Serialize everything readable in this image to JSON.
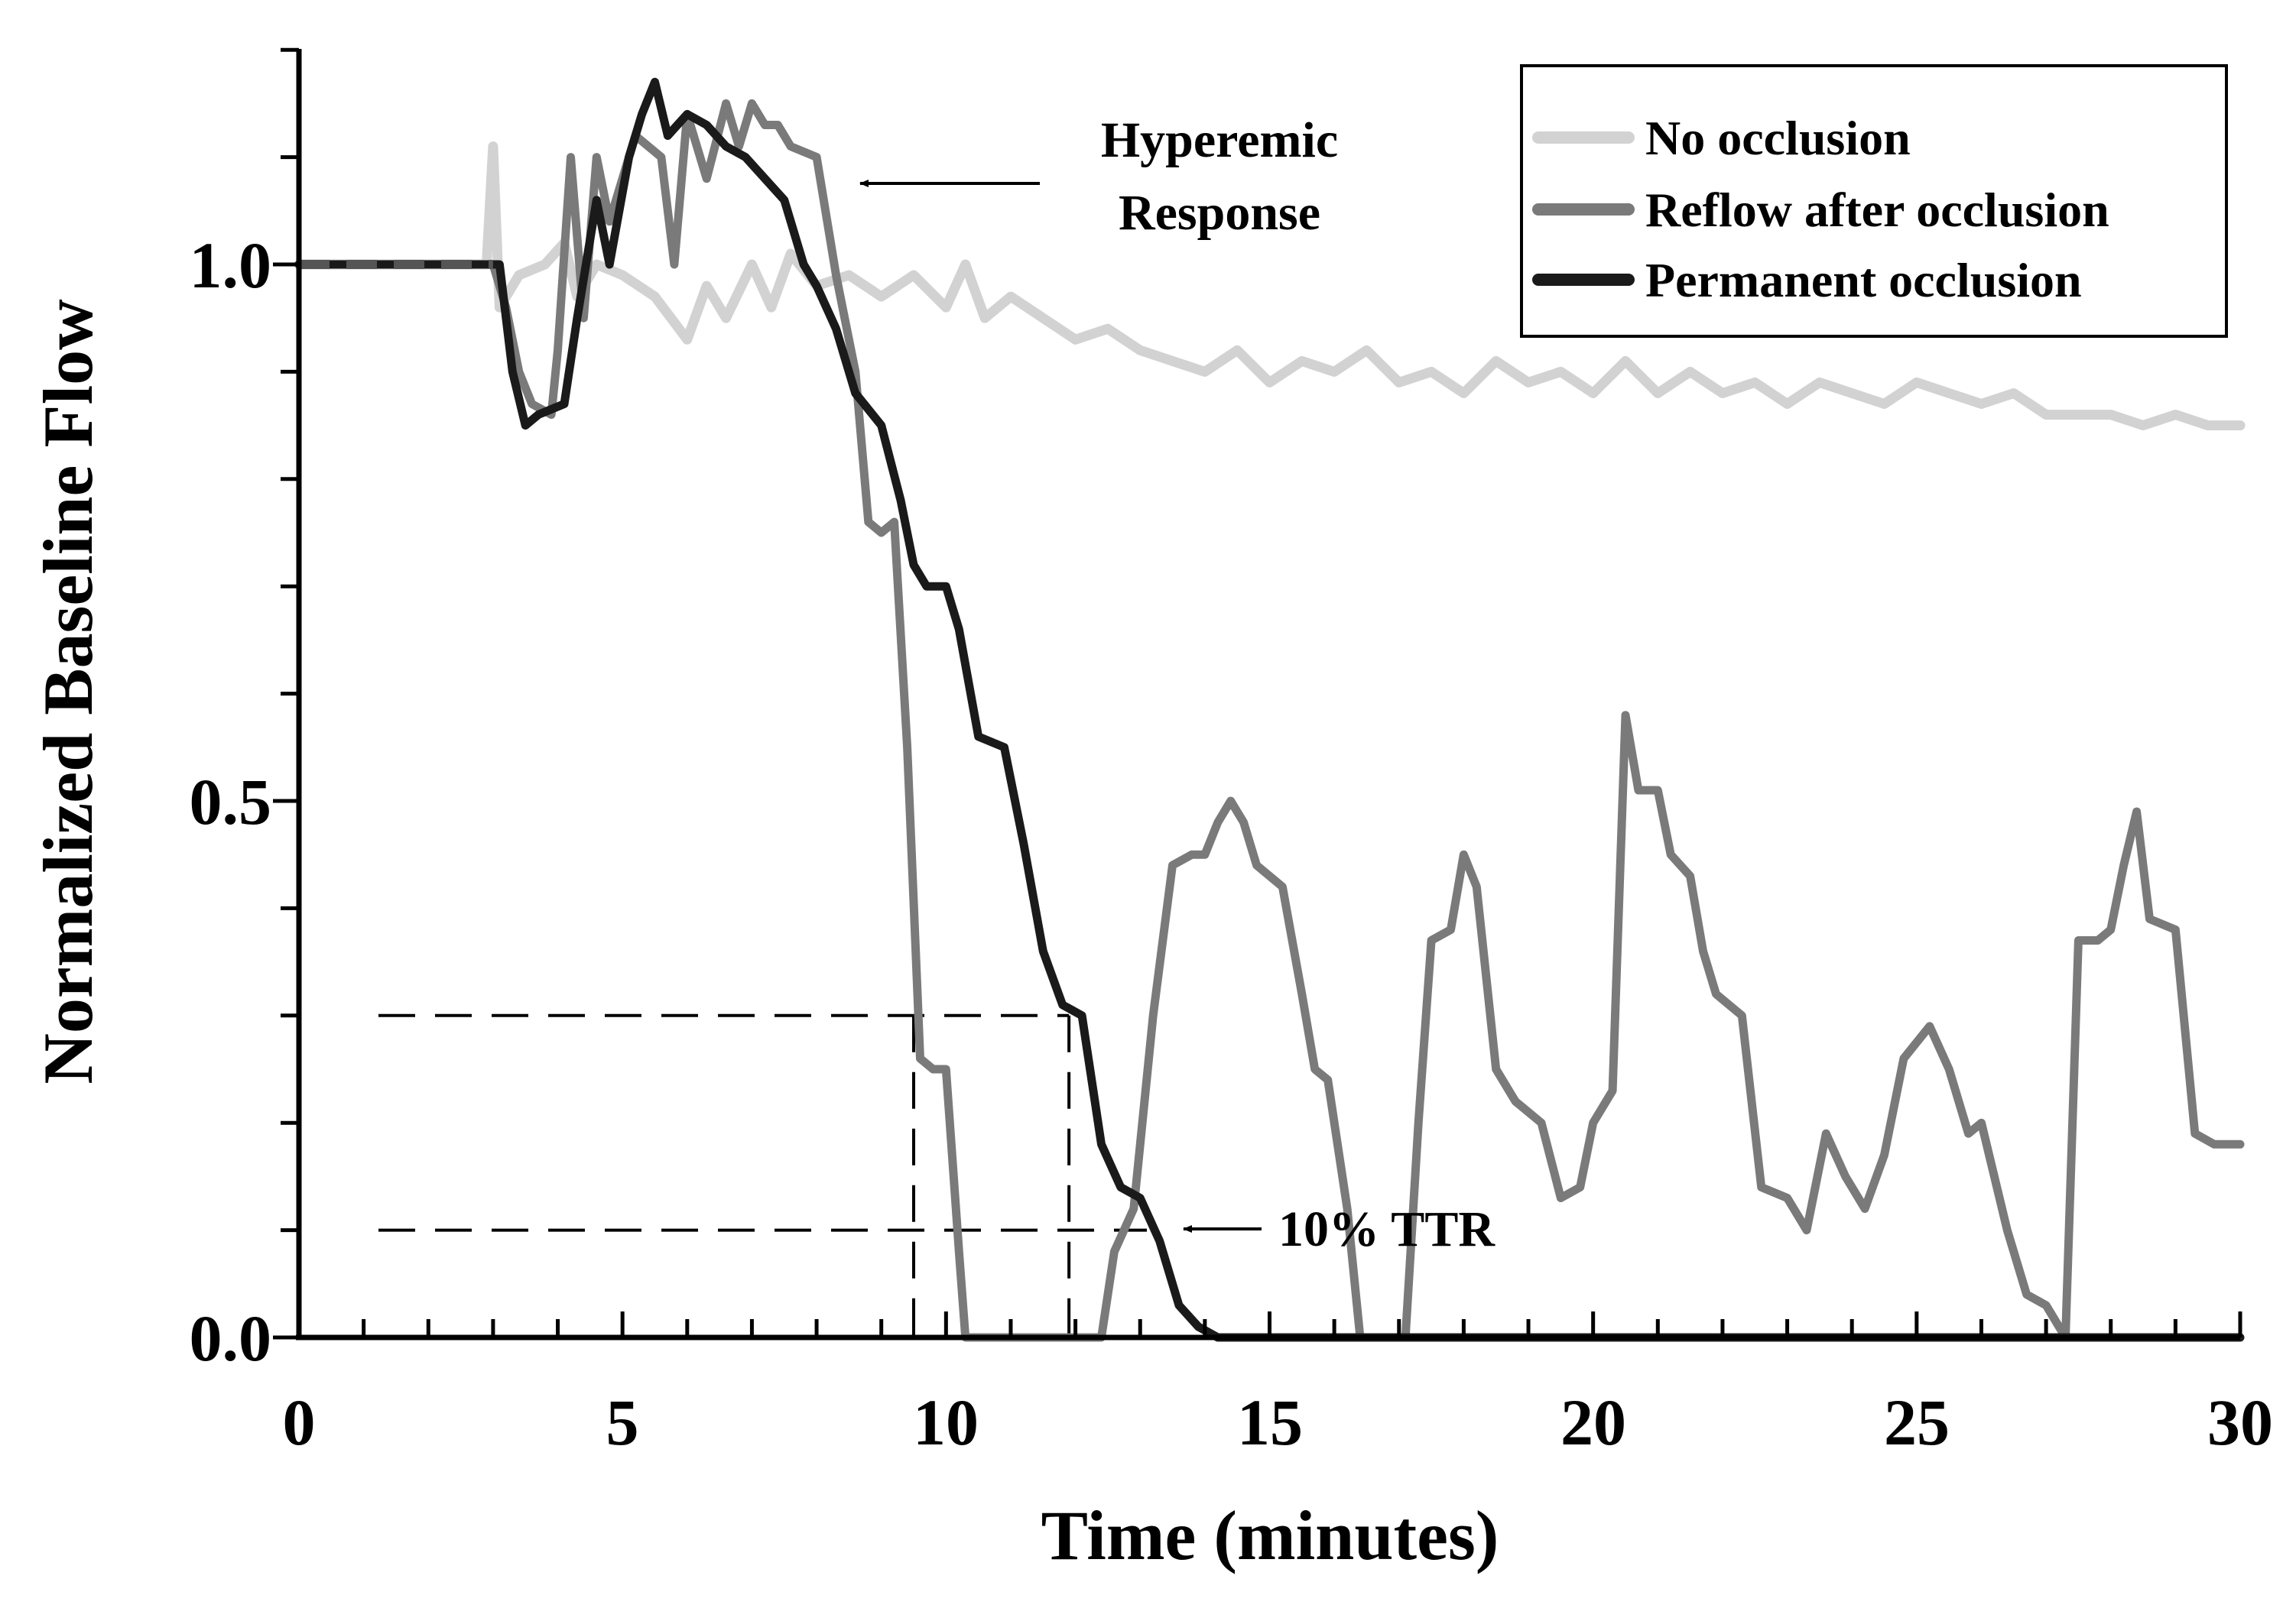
{
  "chart_data": {
    "type": "line",
    "title": "",
    "xlabel": "Time (minutes)",
    "ylabel": "Normalized Baseline Flow",
    "xlim": [
      0,
      30
    ],
    "ylim": [
      0,
      1.2
    ],
    "x_ticks": [
      0,
      5,
      10,
      15,
      20,
      25,
      30
    ],
    "x_tick_labels": [
      "0",
      "5",
      "10",
      "15",
      "20",
      "25",
      "30"
    ],
    "y_ticks": [
      0.0,
      0.5,
      1.0
    ],
    "y_tick_labels": [
      "0.0",
      "0.5",
      "1.0"
    ],
    "minor_tick_step_x": 1,
    "minor_tick_step_y": 0.1,
    "grid": false,
    "legend_position": "top-right",
    "series": [
      {
        "name": "No occlusion",
        "color": "#d2d2d2",
        "points": [
          [
            0,
            1.0
          ],
          [
            2.9,
            1.0
          ],
          [
            3.0,
            1.11
          ],
          [
            3.1,
            0.96
          ],
          [
            3.4,
            0.99
          ],
          [
            3.8,
            1.0
          ],
          [
            4.1,
            1.02
          ],
          [
            4.3,
            0.97
          ],
          [
            4.6,
            1.0
          ],
          [
            5.0,
            0.99
          ],
          [
            5.5,
            0.97
          ],
          [
            6.0,
            0.93
          ],
          [
            6.3,
            0.98
          ],
          [
            6.6,
            0.95
          ],
          [
            7.0,
            1.0
          ],
          [
            7.3,
            0.96
          ],
          [
            7.6,
            1.01
          ],
          [
            8.0,
            0.98
          ],
          [
            8.5,
            0.99
          ],
          [
            9.0,
            0.97
          ],
          [
            9.5,
            0.99
          ],
          [
            10.0,
            0.96
          ],
          [
            10.3,
            1.0
          ],
          [
            10.6,
            0.95
          ],
          [
            11.0,
            0.97
          ],
          [
            11.5,
            0.95
          ],
          [
            12.0,
            0.93
          ],
          [
            12.5,
            0.94
          ],
          [
            13.0,
            0.92
          ],
          [
            13.5,
            0.91
          ],
          [
            14.0,
            0.9
          ],
          [
            14.5,
            0.92
          ],
          [
            15.0,
            0.89
          ],
          [
            15.5,
            0.91
          ],
          [
            16.0,
            0.9
          ],
          [
            16.5,
            0.92
          ],
          [
            17.0,
            0.89
          ],
          [
            17.5,
            0.9
          ],
          [
            18.0,
            0.88
          ],
          [
            18.5,
            0.91
          ],
          [
            19.0,
            0.89
          ],
          [
            19.5,
            0.9
          ],
          [
            20.0,
            0.88
          ],
          [
            20.5,
            0.91
          ],
          [
            21.0,
            0.88
          ],
          [
            21.5,
            0.9
          ],
          [
            22.0,
            0.88
          ],
          [
            22.5,
            0.89
          ],
          [
            23.0,
            0.87
          ],
          [
            23.5,
            0.89
          ],
          [
            24.0,
            0.88
          ],
          [
            24.5,
            0.87
          ],
          [
            25.0,
            0.89
          ],
          [
            25.5,
            0.88
          ],
          [
            26.0,
            0.87
          ],
          [
            26.5,
            0.88
          ],
          [
            27.0,
            0.86
          ],
          [
            27.5,
            0.86
          ],
          [
            28.0,
            0.86
          ],
          [
            28.5,
            0.85
          ],
          [
            29.0,
            0.86
          ],
          [
            29.5,
            0.85
          ],
          [
            30.0,
            0.85
          ]
        ]
      },
      {
        "name": "Reflow after occlusion",
        "color": "#7a7a7a",
        "points": [
          [
            0,
            1.0
          ],
          [
            3.0,
            1.0
          ],
          [
            3.2,
            0.96
          ],
          [
            3.4,
            0.9
          ],
          [
            3.6,
            0.87
          ],
          [
            3.9,
            0.86
          ],
          [
            4.0,
            0.92
          ],
          [
            4.2,
            1.1
          ],
          [
            4.4,
            0.95
          ],
          [
            4.6,
            1.1
          ],
          [
            4.8,
            1.04
          ],
          [
            5.2,
            1.12
          ],
          [
            5.6,
            1.1
          ],
          [
            5.8,
            1.0
          ],
          [
            6.0,
            1.14
          ],
          [
            6.3,
            1.08
          ],
          [
            6.6,
            1.15
          ],
          [
            6.8,
            1.11
          ],
          [
            7.0,
            1.15
          ],
          [
            7.2,
            1.13
          ],
          [
            7.4,
            1.13
          ],
          [
            7.6,
            1.11
          ],
          [
            8.0,
            1.1
          ],
          [
            8.3,
            0.99
          ],
          [
            8.6,
            0.9
          ],
          [
            8.8,
            0.76
          ],
          [
            9.0,
            0.75
          ],
          [
            9.2,
            0.76
          ],
          [
            9.4,
            0.55
          ],
          [
            9.6,
            0.26
          ],
          [
            9.8,
            0.25
          ],
          [
            10.0,
            0.25
          ],
          [
            10.2,
            0.08
          ],
          [
            10.3,
            0.0
          ],
          [
            12.4,
            0.0
          ],
          [
            12.6,
            0.08
          ],
          [
            12.9,
            0.12
          ],
          [
            13.2,
            0.3
          ],
          [
            13.5,
            0.44
          ],
          [
            13.8,
            0.45
          ],
          [
            14.0,
            0.45
          ],
          [
            14.2,
            0.48
          ],
          [
            14.4,
            0.5
          ],
          [
            14.6,
            0.48
          ],
          [
            14.8,
            0.44
          ],
          [
            15.2,
            0.42
          ],
          [
            15.5,
            0.32
          ],
          [
            15.7,
            0.25
          ],
          [
            15.9,
            0.24
          ],
          [
            16.2,
            0.12
          ],
          [
            16.4,
            0.0
          ],
          [
            17.1,
            0.0
          ],
          [
            17.3,
            0.2
          ],
          [
            17.5,
            0.37
          ],
          [
            17.8,
            0.38
          ],
          [
            18.0,
            0.45
          ],
          [
            18.2,
            0.42
          ],
          [
            18.5,
            0.25
          ],
          [
            18.8,
            0.22
          ],
          [
            19.2,
            0.2
          ],
          [
            19.5,
            0.13
          ],
          [
            19.8,
            0.14
          ],
          [
            20.0,
            0.2
          ],
          [
            20.3,
            0.23
          ],
          [
            20.5,
            0.58
          ],
          [
            20.7,
            0.51
          ],
          [
            21.0,
            0.51
          ],
          [
            21.2,
            0.45
          ],
          [
            21.5,
            0.43
          ],
          [
            21.7,
            0.36
          ],
          [
            21.9,
            0.32
          ],
          [
            22.3,
            0.3
          ],
          [
            22.6,
            0.14
          ],
          [
            23.0,
            0.13
          ],
          [
            23.3,
            0.1
          ],
          [
            23.6,
            0.19
          ],
          [
            23.9,
            0.15
          ],
          [
            24.2,
            0.12
          ],
          [
            24.5,
            0.17
          ],
          [
            24.8,
            0.26
          ],
          [
            25.2,
            0.29
          ],
          [
            25.5,
            0.25
          ],
          [
            25.8,
            0.19
          ],
          [
            26.0,
            0.2
          ],
          [
            26.4,
            0.1
          ],
          [
            26.7,
            0.04
          ],
          [
            27.0,
            0.03
          ],
          [
            27.3,
            0.0
          ],
          [
            27.5,
            0.37
          ],
          [
            27.8,
            0.37
          ],
          [
            28.0,
            0.38
          ],
          [
            28.2,
            0.44
          ],
          [
            28.4,
            0.49
          ],
          [
            28.6,
            0.39
          ],
          [
            29.0,
            0.38
          ],
          [
            29.3,
            0.19
          ],
          [
            29.6,
            0.18
          ],
          [
            30.0,
            0.18
          ]
        ]
      },
      {
        "name": "Permanent occlusion",
        "color": "#1a1a1a",
        "points": [
          [
            0,
            1.0
          ],
          [
            3.1,
            1.0
          ],
          [
            3.3,
            0.9
          ],
          [
            3.5,
            0.85
          ],
          [
            3.7,
            0.86
          ],
          [
            4.1,
            0.87
          ],
          [
            4.3,
            0.95
          ],
          [
            4.6,
            1.06
          ],
          [
            4.8,
            1.0
          ],
          [
            5.1,
            1.1
          ],
          [
            5.3,
            1.14
          ],
          [
            5.5,
            1.17
          ],
          [
            5.7,
            1.12
          ],
          [
            6.0,
            1.14
          ],
          [
            6.3,
            1.13
          ],
          [
            6.6,
            1.11
          ],
          [
            6.9,
            1.1
          ],
          [
            7.2,
            1.08
          ],
          [
            7.5,
            1.06
          ],
          [
            7.8,
            1.0
          ],
          [
            8.0,
            0.98
          ],
          [
            8.3,
            0.94
          ],
          [
            8.6,
            0.88
          ],
          [
            9.0,
            0.85
          ],
          [
            9.3,
            0.78
          ],
          [
            9.5,
            0.72
          ],
          [
            9.7,
            0.7
          ],
          [
            10.0,
            0.7
          ],
          [
            10.2,
            0.66
          ],
          [
            10.5,
            0.56
          ],
          [
            10.9,
            0.55
          ],
          [
            11.2,
            0.46
          ],
          [
            11.5,
            0.36
          ],
          [
            11.8,
            0.31
          ],
          [
            12.1,
            0.3
          ],
          [
            12.4,
            0.18
          ],
          [
            12.7,
            0.14
          ],
          [
            13.0,
            0.13
          ],
          [
            13.3,
            0.09
          ],
          [
            13.6,
            0.03
          ],
          [
            13.9,
            0.01
          ],
          [
            14.2,
            0.0
          ],
          [
            29.4,
            0.0
          ],
          [
            30.0,
            0.0
          ]
        ]
      }
    ],
    "annotations": [
      {
        "text_lines": [
          "Hyperemic",
          "Response"
        ],
        "points_to": [
          8.8,
          1.08
        ]
      },
      {
        "text": "10% TTR",
        "points_to": [
          13.5,
          0.1
        ]
      }
    ],
    "reference_lines": {
      "horizontal": [
        0.3,
        0.1
      ],
      "vertical": [
        9.5,
        11.9
      ]
    }
  }
}
